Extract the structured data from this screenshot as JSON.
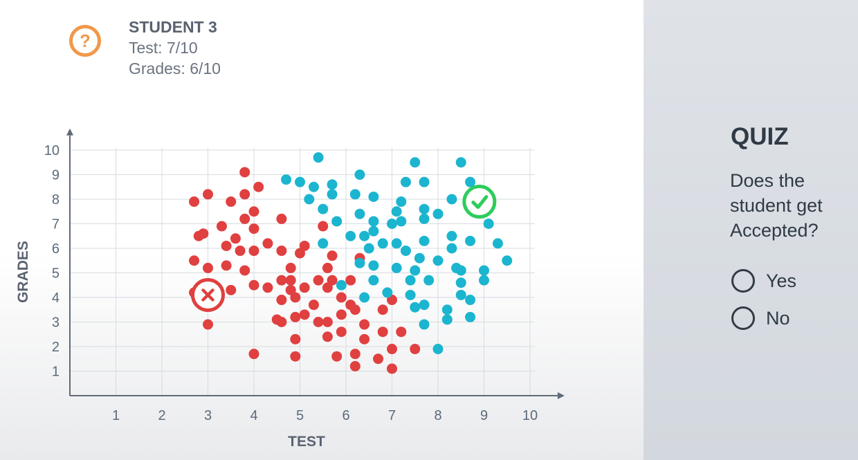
{
  "student": {
    "icon": "question-icon",
    "title": "STUDENT 3",
    "test": "Test: 7/10",
    "grades": "Grades: 6/10"
  },
  "quiz": {
    "title": "QUIZ",
    "question": "Does the student get Accepted?",
    "options": [
      {
        "label": "Yes"
      },
      {
        "label": "No"
      }
    ]
  },
  "colors": {
    "rejected": "#e04040",
    "accepted": "#1cb5cf",
    "question_icon": "#f0994a",
    "check": "#2ecc5c"
  },
  "chart_data": {
    "type": "scatter",
    "xlabel": "TEST",
    "ylabel": "GRADES",
    "xlim": [
      0,
      10
    ],
    "ylim": [
      0,
      10
    ],
    "xticks": [
      1,
      2,
      3,
      4,
      5,
      6,
      7,
      8,
      9,
      10
    ],
    "yticks": [
      1,
      2,
      3,
      4,
      5,
      6,
      7,
      8,
      9,
      10
    ],
    "grid": true,
    "series": [
      {
        "color": "#e04040",
        "points": [
          [
            3.8,
            9.1
          ],
          [
            4.1,
            8.5
          ],
          [
            3.0,
            8.2
          ],
          [
            2.7,
            7.9
          ],
          [
            3.5,
            7.9
          ],
          [
            3.8,
            8.2
          ],
          [
            4.0,
            7.5
          ],
          [
            3.8,
            7.2
          ],
          [
            4.6,
            7.2
          ],
          [
            2.8,
            6.5
          ],
          [
            2.9,
            6.6
          ],
          [
            3.3,
            6.9
          ],
          [
            4.0,
            6.8
          ],
          [
            3.4,
            6.1
          ],
          [
            3.6,
            6.4
          ],
          [
            3.7,
            5.9
          ],
          [
            4.0,
            5.9
          ],
          [
            4.3,
            6.2
          ],
          [
            5.1,
            6.1
          ],
          [
            4.6,
            5.9
          ],
          [
            5.0,
            5.8
          ],
          [
            5.5,
            6.9
          ],
          [
            2.7,
            5.5
          ],
          [
            3.0,
            5.2
          ],
          [
            3.4,
            5.3
          ],
          [
            3.8,
            5.1
          ],
          [
            4.8,
            5.2
          ],
          [
            5.6,
            5.2
          ],
          [
            5.7,
            5.7
          ],
          [
            6.3,
            5.6
          ],
          [
            4.6,
            4.7
          ],
          [
            4.8,
            4.7
          ],
          [
            5.4,
            4.7
          ],
          [
            5.7,
            4.7
          ],
          [
            4.0,
            4.5
          ],
          [
            4.3,
            4.4
          ],
          [
            4.8,
            4.3
          ],
          [
            5.1,
            4.4
          ],
          [
            5.6,
            4.4
          ],
          [
            6.1,
            4.7
          ],
          [
            2.7,
            4.2
          ],
          [
            3.5,
            4.3
          ],
          [
            4.6,
            3.9
          ],
          [
            4.9,
            4.0
          ],
          [
            5.3,
            3.7
          ],
          [
            5.9,
            4.0
          ],
          [
            6.1,
            3.7
          ],
          [
            7.0,
            3.9
          ],
          [
            4.5,
            3.1
          ],
          [
            4.6,
            3.0
          ],
          [
            4.9,
            3.2
          ],
          [
            5.1,
            3.3
          ],
          [
            5.4,
            3.0
          ],
          [
            5.6,
            3.0
          ],
          [
            5.9,
            3.3
          ],
          [
            6.2,
            3.5
          ],
          [
            6.4,
            2.9
          ],
          [
            6.8,
            3.5
          ],
          [
            3.0,
            2.9
          ],
          [
            4.9,
            2.3
          ],
          [
            5.6,
            2.4
          ],
          [
            5.9,
            2.6
          ],
          [
            6.4,
            2.3
          ],
          [
            6.8,
            2.6
          ],
          [
            7.2,
            2.6
          ],
          [
            7.0,
            1.9
          ],
          [
            7.5,
            1.9
          ],
          [
            4.0,
            1.7
          ],
          [
            4.9,
            1.6
          ],
          [
            5.8,
            1.6
          ],
          [
            6.2,
            1.7
          ],
          [
            6.7,
            1.5
          ],
          [
            6.2,
            1.2
          ],
          [
            7.0,
            1.1
          ]
        ]
      },
      {
        "color": "#1cb5cf",
        "points": [
          [
            5.4,
            9.7
          ],
          [
            6.3,
            9.0
          ],
          [
            7.5,
            9.5
          ],
          [
            8.5,
            9.5
          ],
          [
            4.7,
            8.8
          ],
          [
            5.0,
            8.7
          ],
          [
            5.3,
            8.5
          ],
          [
            5.7,
            8.6
          ],
          [
            7.3,
            8.7
          ],
          [
            7.7,
            8.7
          ],
          [
            8.7,
            8.7
          ],
          [
            5.2,
            8.0
          ],
          [
            5.5,
            7.6
          ],
          [
            5.7,
            8.2
          ],
          [
            6.2,
            8.2
          ],
          [
            6.6,
            8.1
          ],
          [
            7.2,
            7.9
          ],
          [
            8.3,
            8.0
          ],
          [
            5.8,
            7.1
          ],
          [
            6.3,
            7.4
          ],
          [
            6.6,
            7.1
          ],
          [
            7.0,
            7.0
          ],
          [
            7.1,
            7.5
          ],
          [
            7.2,
            7.1
          ],
          [
            7.7,
            7.6
          ],
          [
            7.7,
            7.2
          ],
          [
            8.0,
            7.4
          ],
          [
            9.1,
            7.0
          ],
          [
            5.5,
            6.2
          ],
          [
            6.1,
            6.5
          ],
          [
            6.4,
            6.5
          ],
          [
            6.6,
            6.7
          ],
          [
            6.8,
            6.2
          ],
          [
            6.5,
            6.0
          ],
          [
            7.1,
            6.2
          ],
          [
            7.3,
            5.9
          ],
          [
            7.7,
            6.3
          ],
          [
            8.3,
            6.5
          ],
          [
            8.3,
            6.0
          ],
          [
            8.7,
            6.3
          ],
          [
            9.3,
            6.2
          ],
          [
            6.3,
            5.4
          ],
          [
            6.6,
            5.3
          ],
          [
            7.1,
            5.2
          ],
          [
            7.5,
            5.1
          ],
          [
            7.6,
            5.6
          ],
          [
            8.0,
            5.5
          ],
          [
            8.4,
            5.2
          ],
          [
            8.5,
            5.1
          ],
          [
            9.0,
            5.1
          ],
          [
            9.5,
            5.5
          ],
          [
            5.9,
            4.5
          ],
          [
            6.6,
            4.7
          ],
          [
            6.9,
            4.2
          ],
          [
            7.4,
            4.7
          ],
          [
            7.8,
            4.7
          ],
          [
            8.5,
            4.6
          ],
          [
            8.5,
            4.1
          ],
          [
            8.7,
            3.9
          ],
          [
            9.0,
            4.7
          ],
          [
            6.4,
            4.0
          ],
          [
            7.4,
            4.1
          ],
          [
            7.5,
            3.6
          ],
          [
            7.7,
            3.7
          ],
          [
            8.2,
            3.5
          ],
          [
            7.7,
            2.9
          ],
          [
            8.2,
            3.1
          ],
          [
            8.7,
            3.2
          ],
          [
            8.0,
            1.9
          ]
        ]
      }
    ],
    "annotations": [
      {
        "type": "rejected-marker",
        "x": 3.0,
        "y": 4.1
      },
      {
        "type": "accepted-marker",
        "x": 8.9,
        "y": 7.9
      }
    ]
  }
}
